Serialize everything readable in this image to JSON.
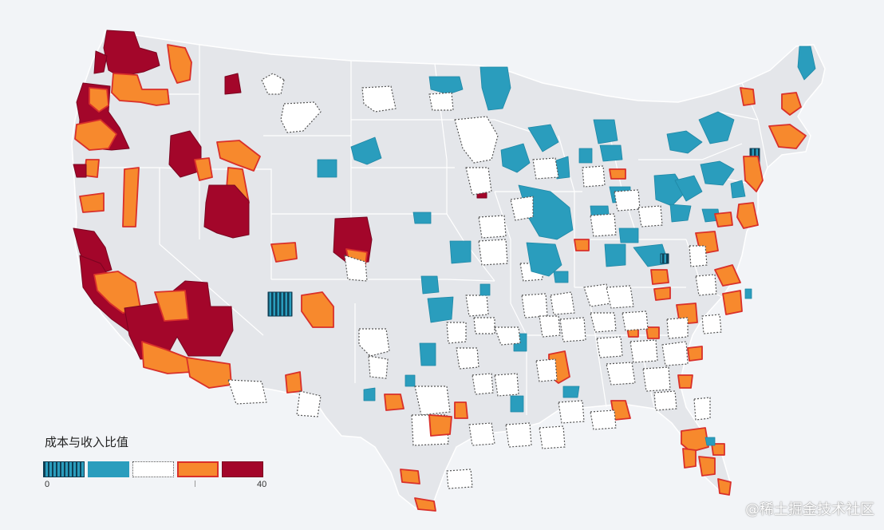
{
  "legend": {
    "title": "成本与收入比值",
    "min_label": "0",
    "max_label": "40",
    "categories": [
      {
        "name": "very-low",
        "color": "#1b5c78",
        "pattern": "striped"
      },
      {
        "name": "low",
        "color": "#2a9dbd",
        "pattern": "solid"
      },
      {
        "name": "mid",
        "color": "#ffffff",
        "pattern": "dotted"
      },
      {
        "name": "high",
        "color": "#f7892d",
        "pattern": "solid"
      },
      {
        "name": "very-high",
        "color": "#a3062a",
        "pattern": "solid"
      }
    ]
  },
  "watermark": "@稀土掘金技术社区",
  "colors": {
    "background": "#f2f4f7",
    "land": "#e4e6ea",
    "state_border": "#ffffff",
    "very_low": "#1b5c78",
    "low": "#2a9dbd",
    "mid_fill": "#ffffff",
    "mid_stroke": "#555555",
    "high": "#f7892d",
    "high_stroke": "#d9302a",
    "very_high": "#a3062a"
  }
}
